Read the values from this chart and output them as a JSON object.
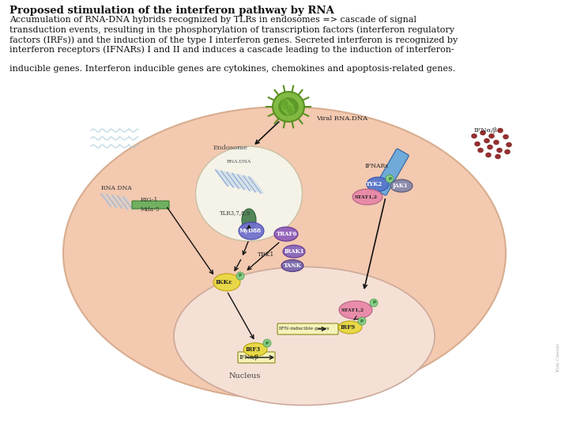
{
  "title_bold": "Proposed stimulation of the interferon pathway by RNA",
  "body_line1": "Accumulation of RNA-DNA hybrids recognized by TLRs in endosomes => cascade of signal",
  "body_line2": "transduction events, resulting in the phosphorylation of transcription factors (interferon regulatory",
  "body_line3": "factors (IRFs)) and the induction of the type I interferon genes. Secreted interferon is recognized by",
  "body_line4": "interferon receptors (IFNARs) I and II and induces a cascade leading to the induction of interferon-",
  "body_line5": "inducible genes. Interferon inducible genes are cytokines, chemokines and apoptosis-related genes.",
  "watermark": "Kim Caesar",
  "bg_color": "#ffffff",
  "text_color": "#111111",
  "title_fs": 9.5,
  "body_fs": 8.0,
  "fig_width": 7.2,
  "fig_height": 5.4,
  "dpi": 100,
  "c_outer": "#f2c4a8",
  "c_nucleus": "#f5e0d5",
  "c_endosome": "#f5f2e8",
  "c_virus": "#7ab83a",
  "c_virus_dark": "#5a9020",
  "c_viral_dots": "#8b1818",
  "c_tlr": "#4a8050",
  "c_myd88": "#7070cc",
  "c_traf6": "#9060bb",
  "c_irak1": "#8868bb",
  "c_tank": "#7868aa",
  "c_tyk2": "#5878cc",
  "c_jak1": "#8888aa",
  "c_ifnar": "#70aad8",
  "c_stat12_pink": "#e888a8",
  "c_stat12_green": "#78b878",
  "c_irf_yellow": "#e8d840",
  "c_ikke_yellow": "#e8d840",
  "c_rig1": "#70b060",
  "c_rna_blue": "#88aac8",
  "c_p_green": "#88cc88"
}
